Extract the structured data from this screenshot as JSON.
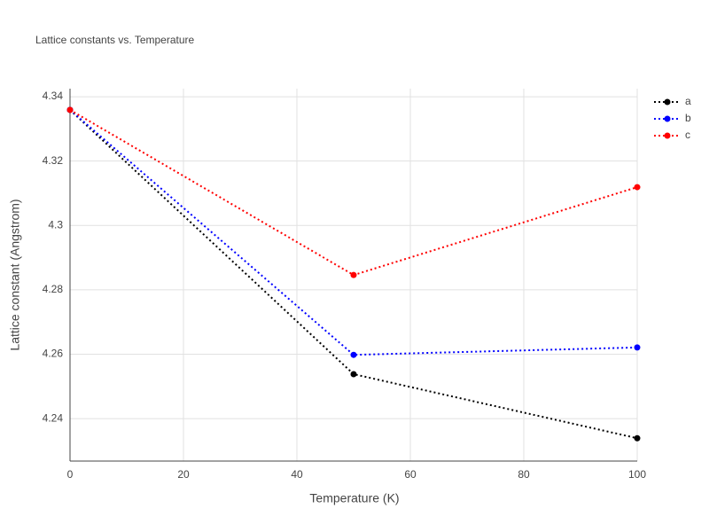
{
  "chart_data": {
    "type": "line",
    "title": "Lattice constants vs. Temperature",
    "x_label": "Temperature (K)",
    "y_label": "Lattice constant (Angstrom)",
    "x": [
      0,
      50,
      100
    ],
    "series": [
      {
        "name": "a",
        "color": "#000000",
        "values": [
          4.3359,
          4.2538,
          4.2339
        ]
      },
      {
        "name": "b",
        "color": "#0000ff",
        "values": [
          4.3359,
          4.2598,
          4.2621
        ]
      },
      {
        "name": "c",
        "color": "#ff0000",
        "values": [
          4.3359,
          4.2846,
          4.3119
        ]
      }
    ],
    "xlim": [
      0,
      100
    ],
    "xticks": [
      0,
      20,
      40,
      60,
      80,
      100
    ],
    "ylim": [
      4.2268,
      4.3425
    ],
    "yticks": [
      4.24,
      4.26,
      4.28,
      4.3,
      4.32,
      4.34
    ],
    "grid": true,
    "legend": "top-right"
  }
}
